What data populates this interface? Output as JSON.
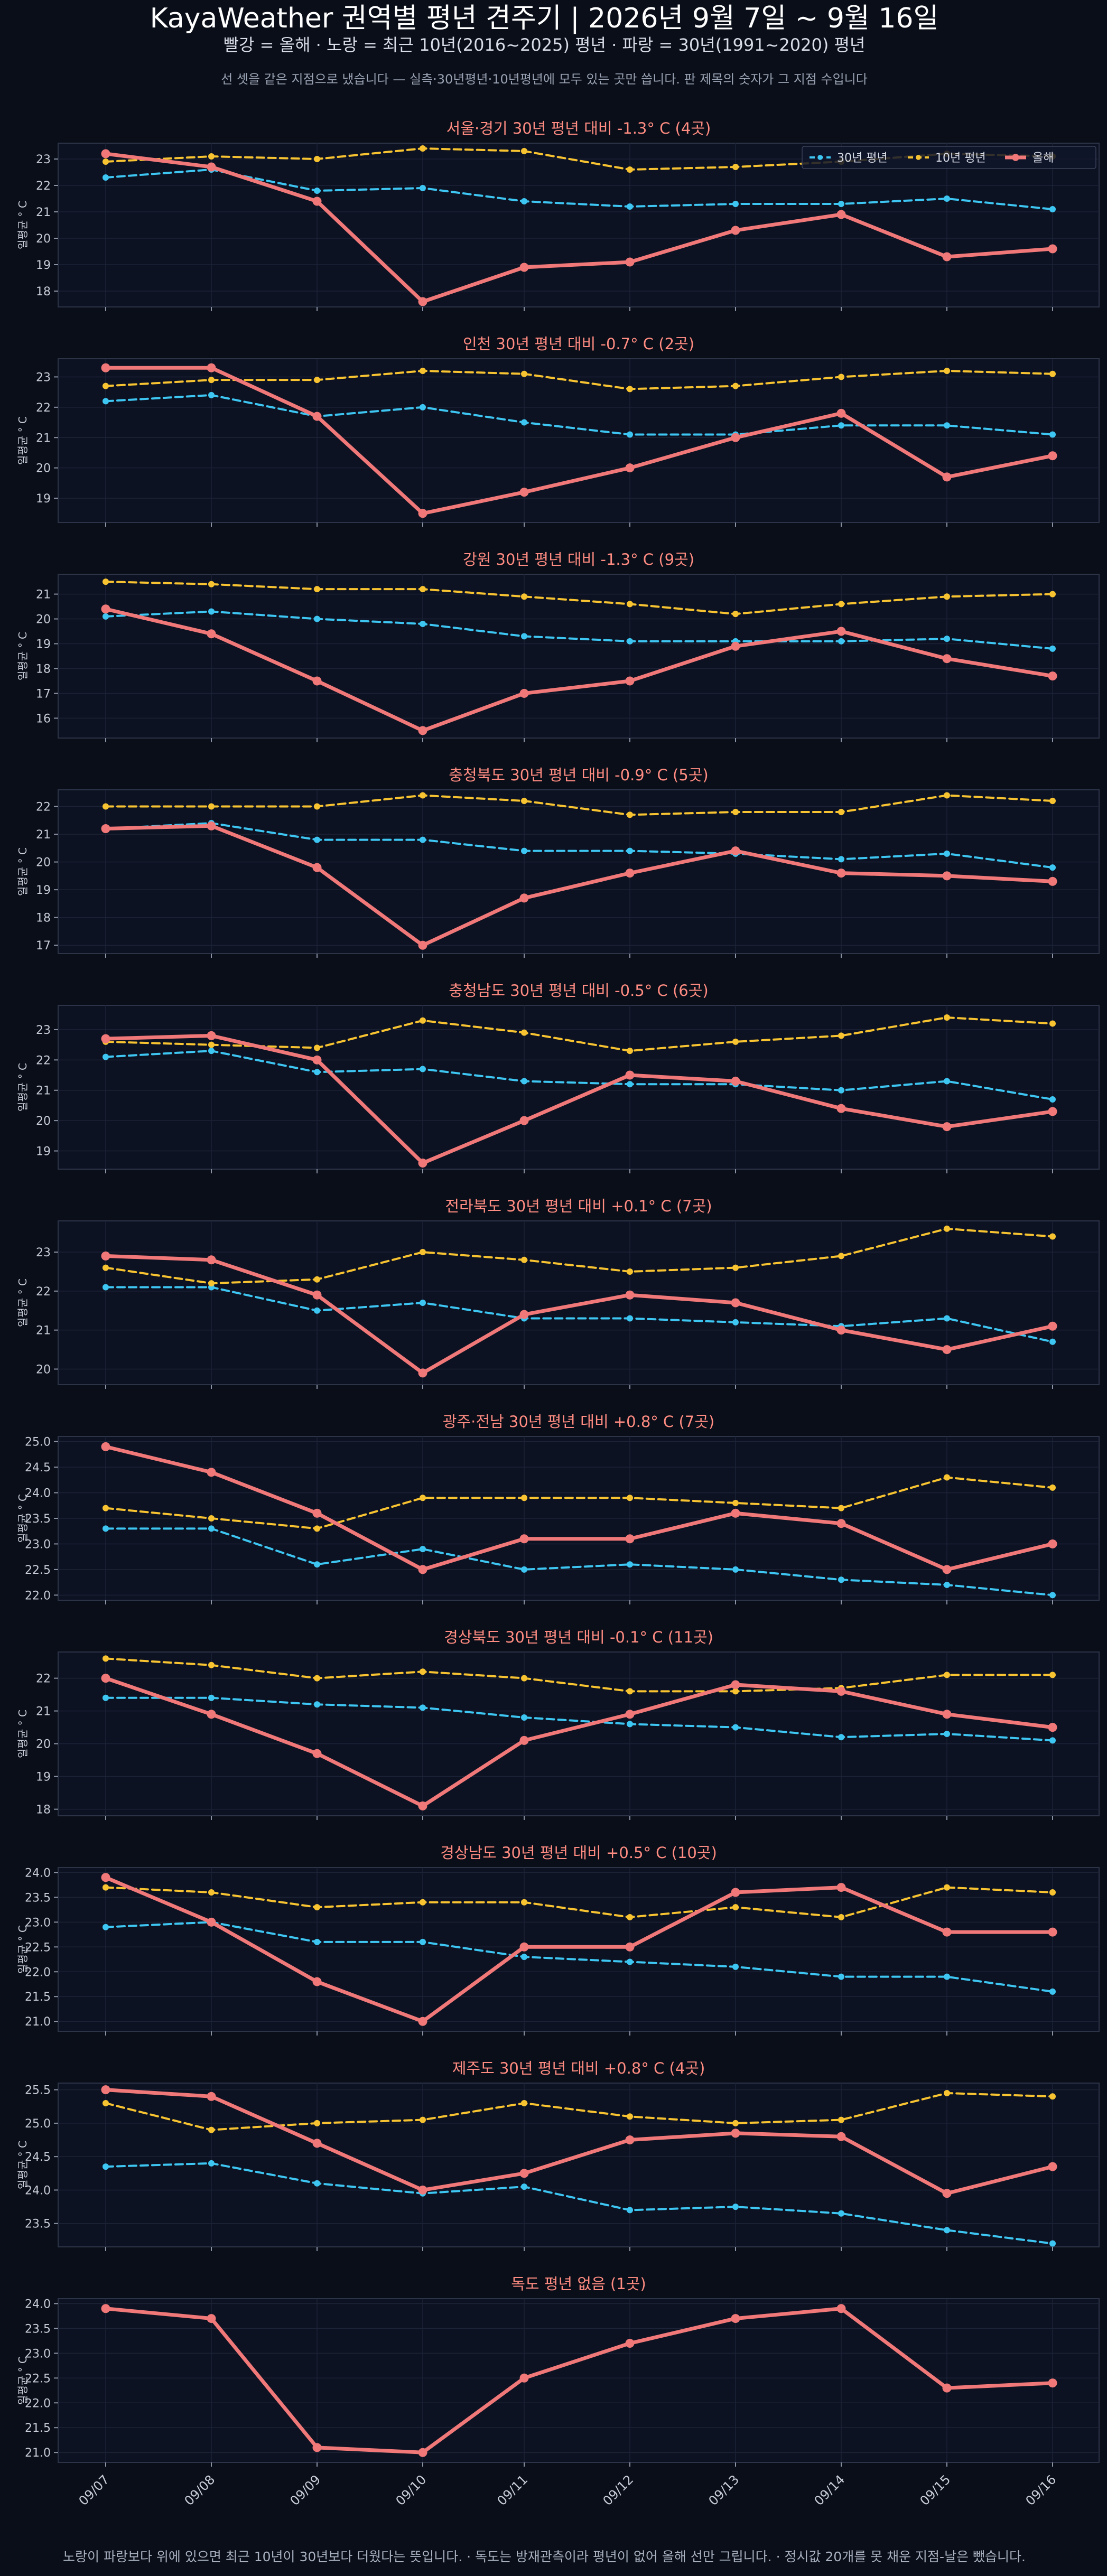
{
  "header": {
    "title": "KayaWeather 권역별 평년 견주기 | 2026년 9월 7일 ~ 9월 16일",
    "subtitle": "빨강 = 올해   ·   노랑 = 최근 10년(2016~2025) 평년   ·   파랑 = 30년(1991~2020) 평년",
    "note": "선 셋을 같은 지점으로 냈습니다 — 실측·30년평년·10년평년에 모두 있는 곳만 씁니다. 판 제목의 숫자가 그 지점 수입니다"
  },
  "footer": {
    "text": "노랑이 파랑보다 위에 있으면 최근 10년이 30년보다 더웠다는 뜻입니다.   ·   독도는 방재관측이라 평년이 없어 올해 선만 그립니다.   ·   정시값 20개를 못 채운 지점-날은 뺐습니다."
  },
  "colors": {
    "background": "#0a0e18",
    "panel": "#0c1222",
    "this_year": "#f07878",
    "normal10": "#f7c331",
    "normal30": "#3ec6f2",
    "title_text": "#ff8c82"
  },
  "legend": {
    "position": "top-right",
    "labels": [
      "30년 평년",
      "10년 평년",
      "올해"
    ]
  },
  "chart_data": [
    {
      "type": "line",
      "title": "서울·경기   30년 평년 대비 -1.3° C  (4곳)",
      "ylabel": "일평균 ° C",
      "ylim": [
        17.4,
        23.6
      ],
      "yticks": [
        18,
        19,
        20,
        21,
        22,
        23
      ],
      "x": [
        "09/07",
        "09/08",
        "09/09",
        "09/10",
        "09/11",
        "09/12",
        "09/13",
        "09/14",
        "09/15",
        "09/16"
      ],
      "series": [
        {
          "name": "30년 평년",
          "values": [
            22.3,
            22.6,
            21.8,
            21.9,
            21.4,
            21.2,
            21.3,
            21.3,
            21.5,
            21.1
          ]
        },
        {
          "name": "10년 평년",
          "values": [
            22.9,
            23.1,
            23.0,
            23.4,
            23.3,
            22.6,
            22.7,
            22.9,
            23.2,
            23.1
          ]
        },
        {
          "name": "올해",
          "values": [
            23.2,
            22.7,
            21.4,
            17.6,
            18.9,
            19.1,
            20.3,
            20.9,
            19.3,
            19.6
          ]
        }
      ]
    },
    {
      "type": "line",
      "title": "인천   30년 평년 대비 -0.7° C  (2곳)",
      "ylabel": "일평균 ° C",
      "ylim": [
        18.2,
        23.6
      ],
      "yticks": [
        19,
        20,
        21,
        22,
        23
      ],
      "x": [
        "09/07",
        "09/08",
        "09/09",
        "09/10",
        "09/11",
        "09/12",
        "09/13",
        "09/14",
        "09/15",
        "09/16"
      ],
      "series": [
        {
          "name": "30년 평년",
          "values": [
            22.2,
            22.4,
            21.7,
            22.0,
            21.5,
            21.1,
            21.1,
            21.4,
            21.4,
            21.1
          ]
        },
        {
          "name": "10년 평년",
          "values": [
            22.7,
            22.9,
            22.9,
            23.2,
            23.1,
            22.6,
            22.7,
            23.0,
            23.2,
            23.1
          ]
        },
        {
          "name": "올해",
          "values": [
            23.3,
            23.3,
            21.7,
            18.5,
            19.2,
            20.0,
            21.0,
            21.8,
            19.7,
            20.4
          ]
        }
      ]
    },
    {
      "type": "line",
      "title": "강원   30년 평년 대비 -1.3° C  (9곳)",
      "ylabel": "일평균 ° C",
      "ylim": [
        15.2,
        21.8
      ],
      "yticks": [
        16,
        17,
        18,
        19,
        20,
        21
      ],
      "x": [
        "09/07",
        "09/08",
        "09/09",
        "09/10",
        "09/11",
        "09/12",
        "09/13",
        "09/14",
        "09/15",
        "09/16"
      ],
      "series": [
        {
          "name": "30년 평년",
          "values": [
            20.1,
            20.3,
            20.0,
            19.8,
            19.3,
            19.1,
            19.1,
            19.1,
            19.2,
            18.8
          ]
        },
        {
          "name": "10년 평년",
          "values": [
            21.5,
            21.4,
            21.2,
            21.2,
            20.9,
            20.6,
            20.2,
            20.6,
            20.9,
            21.0
          ]
        },
        {
          "name": "올해",
          "values": [
            20.4,
            19.4,
            17.5,
            15.5,
            17.0,
            17.5,
            18.9,
            19.5,
            18.4,
            17.7
          ]
        }
      ]
    },
    {
      "type": "line",
      "title": "충청북도   30년 평년 대비 -0.9° C  (5곳)",
      "ylabel": "일평균 ° C",
      "ylim": [
        16.7,
        22.6
      ],
      "yticks": [
        17,
        18,
        19,
        20,
        21,
        22
      ],
      "x": [
        "09/07",
        "09/08",
        "09/09",
        "09/10",
        "09/11",
        "09/12",
        "09/13",
        "09/14",
        "09/15",
        "09/16"
      ],
      "series": [
        {
          "name": "30년 평년",
          "values": [
            21.2,
            21.4,
            20.8,
            20.8,
            20.4,
            20.4,
            20.3,
            20.1,
            20.3,
            19.8
          ]
        },
        {
          "name": "10년 평년",
          "values": [
            22.0,
            22.0,
            22.0,
            22.4,
            22.2,
            21.7,
            21.8,
            21.8,
            22.4,
            22.2
          ]
        },
        {
          "name": "올해",
          "values": [
            21.2,
            21.3,
            19.8,
            17.0,
            18.7,
            19.6,
            20.4,
            19.6,
            19.5,
            19.3
          ]
        }
      ]
    },
    {
      "type": "line",
      "title": "충청남도   30년 평년 대비 -0.5° C  (6곳)",
      "ylabel": "일평균 ° C",
      "ylim": [
        18.4,
        23.8
      ],
      "yticks": [
        19,
        20,
        21,
        22,
        23
      ],
      "x": [
        "09/07",
        "09/08",
        "09/09",
        "09/10",
        "09/11",
        "09/12",
        "09/13",
        "09/14",
        "09/15",
        "09/16"
      ],
      "series": [
        {
          "name": "30년 평년",
          "values": [
            22.1,
            22.3,
            21.6,
            21.7,
            21.3,
            21.2,
            21.2,
            21.0,
            21.3,
            20.7
          ]
        },
        {
          "name": "10년 평년",
          "values": [
            22.6,
            22.5,
            22.4,
            23.3,
            22.9,
            22.3,
            22.6,
            22.8,
            23.4,
            23.2
          ]
        },
        {
          "name": "올해",
          "values": [
            22.7,
            22.8,
            22.0,
            18.6,
            20.0,
            21.5,
            21.3,
            20.4,
            19.8,
            20.3
          ]
        }
      ]
    },
    {
      "type": "line",
      "title": "전라북도   30년 평년 대비 +0.1° C  (7곳)",
      "ylabel": "일평균 ° C",
      "ylim": [
        19.6,
        23.8
      ],
      "yticks": [
        20,
        21,
        22,
        23
      ],
      "x": [
        "09/07",
        "09/08",
        "09/09",
        "09/10",
        "09/11",
        "09/12",
        "09/13",
        "09/14",
        "09/15",
        "09/16"
      ],
      "series": [
        {
          "name": "30년 평년",
          "values": [
            22.1,
            22.1,
            21.5,
            21.7,
            21.3,
            21.3,
            21.2,
            21.1,
            21.3,
            20.7
          ]
        },
        {
          "name": "10년 평년",
          "values": [
            22.6,
            22.2,
            22.3,
            23.0,
            22.8,
            22.5,
            22.6,
            22.9,
            23.6,
            23.4
          ]
        },
        {
          "name": "올해",
          "values": [
            22.9,
            22.8,
            21.9,
            19.9,
            21.4,
            21.9,
            21.7,
            21.0,
            20.5,
            21.1
          ]
        }
      ]
    },
    {
      "type": "line",
      "title": "광주·전남   30년 평년 대비 +0.8° C  (7곳)",
      "ylabel": "일평균 ° C",
      "ylim": [
        21.9,
        25.1
      ],
      "yticks": [
        22.0,
        22.5,
        23.0,
        23.5,
        24.0,
        24.5,
        25.0
      ],
      "x": [
        "09/07",
        "09/08",
        "09/09",
        "09/10",
        "09/11",
        "09/12",
        "09/13",
        "09/14",
        "09/15",
        "09/16"
      ],
      "series": [
        {
          "name": "30년 평년",
          "values": [
            23.3,
            23.3,
            22.6,
            22.9,
            22.5,
            22.6,
            22.5,
            22.3,
            22.2,
            22.0
          ]
        },
        {
          "name": "10년 평년",
          "values": [
            23.7,
            23.5,
            23.3,
            23.9,
            23.9,
            23.9,
            23.8,
            23.7,
            24.3,
            24.1
          ]
        },
        {
          "name": "올해",
          "values": [
            24.9,
            24.4,
            23.6,
            22.5,
            23.1,
            23.1,
            23.6,
            23.4,
            22.5,
            23.0
          ]
        }
      ]
    },
    {
      "type": "line",
      "title": "경상북도   30년 평년 대비 -0.1° C  (11곳)",
      "ylabel": "일평균 ° C",
      "ylim": [
        17.8,
        22.8
      ],
      "yticks": [
        18,
        19,
        20,
        21,
        22
      ],
      "x": [
        "09/07",
        "09/08",
        "09/09",
        "09/10",
        "09/11",
        "09/12",
        "09/13",
        "09/14",
        "09/15",
        "09/16"
      ],
      "series": [
        {
          "name": "30년 평년",
          "values": [
            21.4,
            21.4,
            21.2,
            21.1,
            20.8,
            20.6,
            20.5,
            20.2,
            20.3,
            20.1
          ]
        },
        {
          "name": "10년 평년",
          "values": [
            22.6,
            22.4,
            22.0,
            22.2,
            22.0,
            21.6,
            21.6,
            21.7,
            22.1,
            22.1
          ]
        },
        {
          "name": "올해",
          "values": [
            22.0,
            20.9,
            19.7,
            18.1,
            20.1,
            20.9,
            21.8,
            21.6,
            20.9,
            20.5
          ]
        }
      ]
    },
    {
      "type": "line",
      "title": "경상남도   30년 평년 대비 +0.5° C  (10곳)",
      "ylabel": "일평균 ° C",
      "ylim": [
        20.8,
        24.1
      ],
      "yticks": [
        21.0,
        21.5,
        22.0,
        22.5,
        23.0,
        23.5,
        24.0
      ],
      "x": [
        "09/07",
        "09/08",
        "09/09",
        "09/10",
        "09/11",
        "09/12",
        "09/13",
        "09/14",
        "09/15",
        "09/16"
      ],
      "series": [
        {
          "name": "30년 평년",
          "values": [
            22.9,
            23.0,
            22.6,
            22.6,
            22.3,
            22.2,
            22.1,
            21.9,
            21.9,
            21.6
          ]
        },
        {
          "name": "10년 평년",
          "values": [
            23.7,
            23.6,
            23.3,
            23.4,
            23.4,
            23.1,
            23.3,
            23.1,
            23.7,
            23.6
          ]
        },
        {
          "name": "올해",
          "values": [
            23.9,
            23.0,
            21.8,
            21.0,
            22.5,
            22.5,
            23.6,
            23.7,
            22.8,
            22.8
          ]
        }
      ]
    },
    {
      "type": "line",
      "title": "제주도   30년 평년 대비 +0.8° C  (4곳)",
      "ylabel": "일평균 ° C",
      "ylim": [
        23.15,
        25.6
      ],
      "yticks": [
        23.5,
        24.0,
        24.5,
        25.0,
        25.5
      ],
      "x": [
        "09/07",
        "09/08",
        "09/09",
        "09/10",
        "09/11",
        "09/12",
        "09/13",
        "09/14",
        "09/15",
        "09/16"
      ],
      "series": [
        {
          "name": "30년 평년",
          "values": [
            24.35,
            24.4,
            24.1,
            23.95,
            24.05,
            23.7,
            23.75,
            23.65,
            23.4,
            23.2
          ]
        },
        {
          "name": "10년 평년",
          "values": [
            25.3,
            24.9,
            25.0,
            25.05,
            25.3,
            25.1,
            25.0,
            25.05,
            25.45,
            25.4
          ]
        },
        {
          "name": "올해",
          "values": [
            25.5,
            25.4,
            24.7,
            24.0,
            24.25,
            24.75,
            24.85,
            24.8,
            23.95,
            24.35
          ]
        }
      ]
    },
    {
      "type": "line",
      "title": "독도   평년 없음  (1곳)",
      "ylabel": "일평균 ° C",
      "ylim": [
        20.8,
        24.1
      ],
      "yticks": [
        21.0,
        21.5,
        22.0,
        22.5,
        23.0,
        23.5,
        24.0
      ],
      "x": [
        "09/07",
        "09/08",
        "09/09",
        "09/10",
        "09/11",
        "09/12",
        "09/13",
        "09/14",
        "09/15",
        "09/16"
      ],
      "series": [
        {
          "name": "올해",
          "values": [
            23.9,
            23.7,
            21.1,
            21.0,
            22.5,
            23.2,
            23.7,
            23.9,
            22.3,
            22.4
          ]
        }
      ]
    }
  ]
}
